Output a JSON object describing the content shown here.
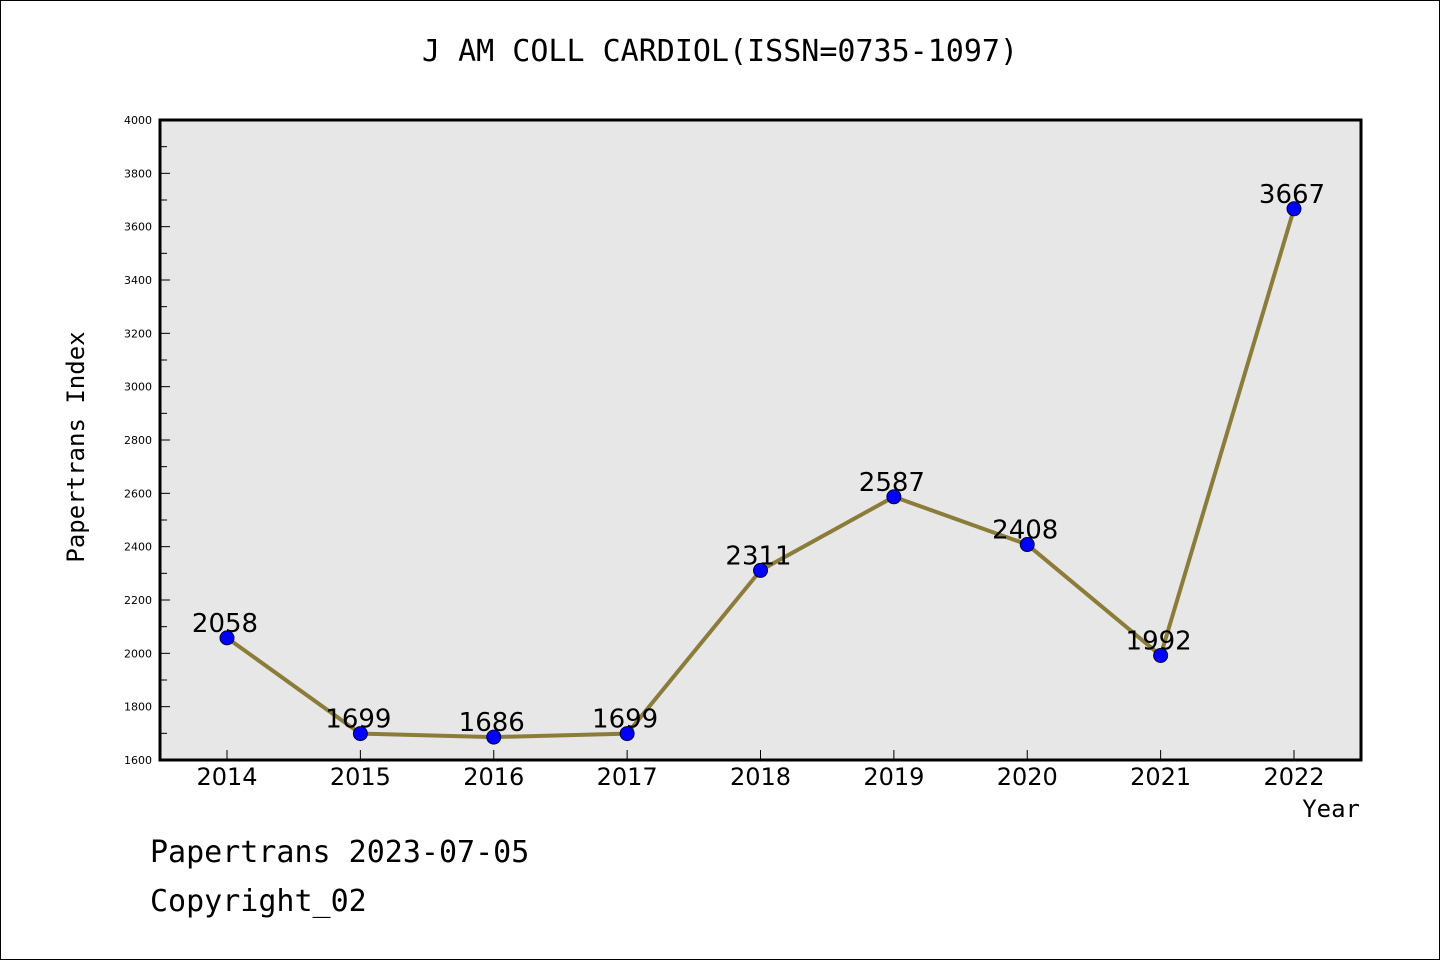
{
  "chart_data": {
    "type": "line",
    "title": "J AM COLL CARDIOL(ISSN=0735-1097)",
    "xlabel": "Year",
    "ylabel": "Papertrans Index",
    "categories": [
      "2014",
      "2015",
      "2016",
      "2017",
      "2018",
      "2019",
      "2020",
      "2021",
      "2022"
    ],
    "series": [
      {
        "values": [
          2058,
          1699,
          1686,
          1699,
          2311,
          2587,
          2408,
          1992,
          3667
        ],
        "labels": [
          "2058",
          "1699",
          "1686",
          "1699",
          "2311",
          "2587",
          "2408",
          "1992",
          "3667"
        ]
      }
    ],
    "ylim": [
      1600,
      4000
    ],
    "yticks": [
      "1600",
      "1800",
      "2000",
      "2200",
      "2400",
      "2600",
      "2800",
      "3000",
      "3200",
      "3400",
      "3600",
      "3800",
      "4000"
    ],
    "grid": false,
    "legend": "none",
    "colors": {
      "line": "#8c7c3a",
      "marker": "#0000ff",
      "plot_background": "#e7e7e7"
    }
  },
  "footer": {
    "line1": "Papertrans 2023-07-05",
    "line2": "Copyright_02"
  }
}
